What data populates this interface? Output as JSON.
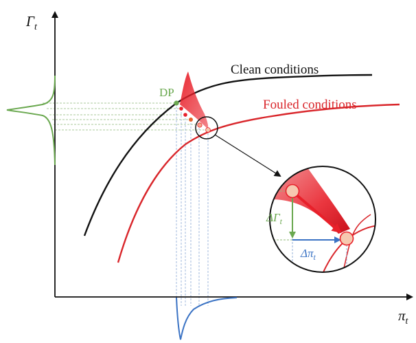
{
  "colors": {
    "clean_curve": "#111111",
    "fouled_curve": "#d9262b",
    "operating_point_green": "#6aa84f",
    "displacement_blue": "#3b73c4",
    "shaded_region": "#e8202a",
    "point_fill": "#f6c9b0",
    "dashed_guides_green": "#8fb97a",
    "dashed_guides_blue": "#8aa9d6"
  },
  "axes": {
    "y_label_main": "Γ",
    "y_label_sub": "t",
    "x_label_main": "π",
    "x_label_sub": "t"
  },
  "curves": {
    "clean_label": "Clean conditions",
    "fouled_label": "Fouled conditions"
  },
  "design_point": {
    "label": "DP"
  },
  "inset": {
    "delta_gamma_main": "ΔΓ",
    "delta_gamma_sub": "t",
    "delta_pi_main": "Δπ",
    "delta_pi_sub": "t"
  }
}
